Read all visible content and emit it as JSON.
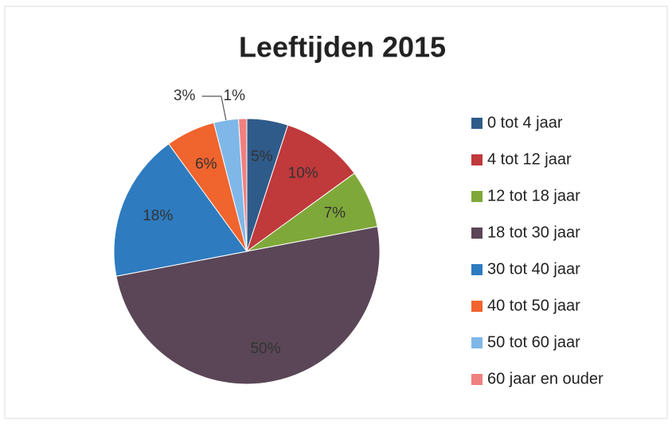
{
  "chart_data": {
    "type": "pie",
    "title": "Leeftijden 2015",
    "categories": [
      "0 tot 4 jaar",
      "4 tot 12 jaar",
      "12 tot 18 jaar",
      "18 tot 30 jaar",
      "30 tot 40 jaar",
      "40 tot 50 jaar",
      "50 tot 60 jaar",
      "60 jaar en ouder"
    ],
    "values": [
      5,
      10,
      7,
      50,
      18,
      6,
      3,
      1
    ],
    "value_labels": [
      "5%",
      "10%",
      "7%",
      "50%",
      "18%",
      "6%",
      "3%",
      "1%"
    ],
    "colors": [
      "#2f5b8a",
      "#c0393b",
      "#7fa83a",
      "#5a4656",
      "#2e7bbf",
      "#f0642e",
      "#7fb8e8",
      "#f08080"
    ],
    "legend": "right"
  }
}
